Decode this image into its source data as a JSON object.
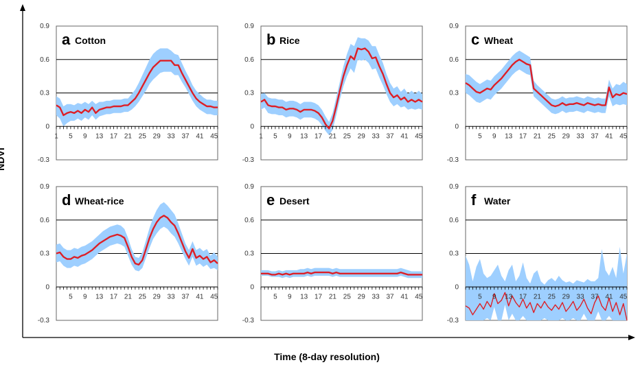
{
  "figure": {
    "xlabel": "Time (8-day resolution)",
    "ylabel": "NDVI"
  },
  "colors": {
    "mean_line": "#dd1f26",
    "band": "#9ecfff",
    "gridline": "#000000",
    "frame": "#666666"
  },
  "chart_data": [
    {
      "type": "line",
      "letter": "a",
      "name": "Cotton",
      "ylim": [
        -0.3,
        0.9
      ],
      "yticks": [
        "0.9",
        "0.6",
        "0.3",
        "0",
        "-0.3"
      ],
      "xticks": [
        "1",
        "5",
        "9",
        "13",
        "17",
        "21",
        "25",
        "29",
        "33",
        "37",
        "41",
        "45"
      ],
      "gridlines": [
        0.3,
        0.6
      ],
      "x": [
        1,
        2,
        3,
        4,
        5,
        6,
        7,
        8,
        9,
        10,
        11,
        12,
        13,
        14,
        15,
        16,
        17,
        18,
        19,
        20,
        21,
        22,
        23,
        24,
        25,
        26,
        27,
        28,
        29,
        30,
        31,
        32,
        33,
        34,
        35,
        36,
        37,
        38,
        39,
        40,
        41,
        42,
        43,
        44,
        45,
        46
      ],
      "mean": [
        0.19,
        0.17,
        0.1,
        0.12,
        0.13,
        0.12,
        0.14,
        0.12,
        0.15,
        0.13,
        0.17,
        0.12,
        0.15,
        0.16,
        0.17,
        0.17,
        0.18,
        0.18,
        0.18,
        0.19,
        0.19,
        0.22,
        0.25,
        0.3,
        0.36,
        0.42,
        0.48,
        0.53,
        0.56,
        0.59,
        0.59,
        0.59,
        0.59,
        0.55,
        0.55,
        0.48,
        0.42,
        0.36,
        0.3,
        0.25,
        0.22,
        0.2,
        0.18,
        0.18,
        0.17,
        0.17
      ],
      "upper": [
        0.27,
        0.25,
        0.18,
        0.2,
        0.2,
        0.19,
        0.21,
        0.2,
        0.22,
        0.2,
        0.23,
        0.2,
        0.22,
        0.22,
        0.23,
        0.23,
        0.24,
        0.24,
        0.24,
        0.25,
        0.25,
        0.29,
        0.33,
        0.39,
        0.46,
        0.53,
        0.6,
        0.65,
        0.68,
        0.7,
        0.7,
        0.7,
        0.68,
        0.65,
        0.64,
        0.57,
        0.5,
        0.44,
        0.37,
        0.32,
        0.29,
        0.26,
        0.24,
        0.24,
        0.23,
        0.23
      ],
      "lower": [
        0.1,
        0.07,
        0.0,
        0.03,
        0.05,
        0.05,
        0.07,
        0.05,
        0.08,
        0.06,
        0.1,
        0.06,
        0.09,
        0.1,
        0.11,
        0.11,
        0.12,
        0.12,
        0.12,
        0.13,
        0.13,
        0.15,
        0.18,
        0.22,
        0.27,
        0.32,
        0.38,
        0.42,
        0.45,
        0.48,
        0.49,
        0.49,
        0.49,
        0.46,
        0.46,
        0.4,
        0.35,
        0.29,
        0.23,
        0.18,
        0.15,
        0.13,
        0.11,
        0.11,
        0.1,
        0.1
      ]
    },
    {
      "type": "line",
      "letter": "b",
      "name": "Rice",
      "ylim": [
        -0.3,
        0.9
      ],
      "yticks": [
        "0.9",
        "0.6",
        "0.3",
        "0",
        "-0.3"
      ],
      "xticks": [
        "1",
        "5",
        "9",
        "13",
        "17",
        "21",
        "25",
        "29",
        "33",
        "37",
        "41",
        "45"
      ],
      "gridlines": [
        0.3,
        0.6
      ],
      "x": [
        1,
        2,
        3,
        4,
        5,
        6,
        7,
        8,
        9,
        10,
        11,
        12,
        13,
        14,
        15,
        16,
        17,
        18,
        19,
        20,
        21,
        22,
        23,
        24,
        25,
        26,
        27,
        28,
        29,
        30,
        31,
        32,
        33,
        34,
        35,
        36,
        37,
        38,
        39,
        40,
        41,
        42,
        43,
        44,
        45,
        46
      ],
      "mean": [
        0.22,
        0.24,
        0.19,
        0.18,
        0.18,
        0.17,
        0.17,
        0.15,
        0.16,
        0.16,
        0.15,
        0.13,
        0.15,
        0.15,
        0.15,
        0.14,
        0.12,
        0.08,
        0.02,
        -0.02,
        0.05,
        0.18,
        0.32,
        0.45,
        0.55,
        0.63,
        0.6,
        0.7,
        0.69,
        0.7,
        0.67,
        0.61,
        0.62,
        0.54,
        0.47,
        0.38,
        0.3,
        0.26,
        0.28,
        0.24,
        0.26,
        0.22,
        0.24,
        0.22,
        0.24,
        0.22
      ],
      "upper": [
        0.29,
        0.3,
        0.26,
        0.25,
        0.25,
        0.24,
        0.24,
        0.22,
        0.23,
        0.23,
        0.22,
        0.2,
        0.22,
        0.22,
        0.22,
        0.21,
        0.19,
        0.15,
        0.09,
        0.04,
        0.12,
        0.26,
        0.4,
        0.54,
        0.65,
        0.74,
        0.72,
        0.8,
        0.79,
        0.79,
        0.77,
        0.72,
        0.72,
        0.64,
        0.57,
        0.47,
        0.39,
        0.34,
        0.36,
        0.31,
        0.34,
        0.29,
        0.32,
        0.29,
        0.32,
        0.29
      ],
      "lower": [
        0.15,
        0.17,
        0.12,
        0.11,
        0.11,
        0.1,
        0.1,
        0.08,
        0.09,
        0.09,
        0.08,
        0.06,
        0.08,
        0.08,
        0.08,
        0.07,
        0.05,
        0.01,
        -0.04,
        -0.08,
        -0.03,
        0.1,
        0.24,
        0.36,
        0.45,
        0.52,
        0.48,
        0.6,
        0.59,
        0.6,
        0.57,
        0.51,
        0.52,
        0.44,
        0.37,
        0.29,
        0.22,
        0.18,
        0.2,
        0.17,
        0.18,
        0.15,
        0.16,
        0.15,
        0.16,
        0.15
      ]
    },
    {
      "type": "line",
      "letter": "c",
      "name": "Wheat",
      "ylim": [
        -0.3,
        0.9
      ],
      "yticks": [
        "0.9",
        "0.6",
        "0.3",
        "0",
        "-0.3"
      ],
      "xticks": [
        "5",
        "9",
        "13",
        "17",
        "21",
        "25",
        "29",
        "33",
        "37",
        "41",
        "45"
      ],
      "gridlines": [
        0.3,
        0.6
      ],
      "x": [
        1,
        2,
        3,
        4,
        5,
        6,
        7,
        8,
        9,
        10,
        11,
        12,
        13,
        14,
        15,
        16,
        17,
        18,
        19,
        20,
        21,
        22,
        23,
        24,
        25,
        26,
        27,
        28,
        29,
        30,
        31,
        32,
        33,
        34,
        35,
        36,
        37,
        38,
        39,
        40,
        41,
        42,
        43,
        44,
        45,
        46
      ],
      "mean": [
        0.39,
        0.37,
        0.34,
        0.31,
        0.3,
        0.32,
        0.34,
        0.33,
        0.37,
        0.4,
        0.43,
        0.47,
        0.51,
        0.55,
        0.58,
        0.6,
        0.58,
        0.56,
        0.55,
        0.34,
        0.31,
        0.28,
        0.25,
        0.22,
        0.19,
        0.18,
        0.19,
        0.21,
        0.19,
        0.2,
        0.2,
        0.21,
        0.2,
        0.19,
        0.21,
        0.2,
        0.19,
        0.2,
        0.19,
        0.19,
        0.35,
        0.26,
        0.29,
        0.28,
        0.3,
        0.29
      ],
      "upper": [
        0.47,
        0.46,
        0.43,
        0.4,
        0.38,
        0.4,
        0.42,
        0.41,
        0.45,
        0.48,
        0.51,
        0.55,
        0.59,
        0.63,
        0.66,
        0.68,
        0.66,
        0.64,
        0.62,
        0.41,
        0.37,
        0.34,
        0.31,
        0.28,
        0.25,
        0.24,
        0.25,
        0.27,
        0.25,
        0.26,
        0.26,
        0.27,
        0.26,
        0.25,
        0.27,
        0.26,
        0.25,
        0.26,
        0.25,
        0.25,
        0.42,
        0.34,
        0.38,
        0.37,
        0.4,
        0.38
      ],
      "lower": [
        0.3,
        0.28,
        0.25,
        0.22,
        0.21,
        0.23,
        0.25,
        0.24,
        0.28,
        0.31,
        0.34,
        0.38,
        0.42,
        0.46,
        0.49,
        0.51,
        0.49,
        0.47,
        0.46,
        0.27,
        0.24,
        0.21,
        0.18,
        0.15,
        0.12,
        0.11,
        0.12,
        0.14,
        0.12,
        0.13,
        0.13,
        0.14,
        0.13,
        0.12,
        0.14,
        0.13,
        0.12,
        0.13,
        0.12,
        0.12,
        0.27,
        0.18,
        0.2,
        0.19,
        0.2,
        0.19
      ]
    },
    {
      "type": "line",
      "letter": "d",
      "name": "Wheat-rice",
      "ylim": [
        -0.3,
        0.9
      ],
      "yticks": [
        "0.9",
        "0.6",
        "0.3",
        "0",
        "-0.3"
      ],
      "xticks": [
        "5",
        "9",
        "13",
        "17",
        "21",
        "25",
        "29",
        "33",
        "37",
        "41",
        "45"
      ],
      "gridlines": [
        0.3,
        0.6
      ],
      "x": [
        1,
        2,
        3,
        4,
        5,
        6,
        7,
        8,
        9,
        10,
        11,
        12,
        13,
        14,
        15,
        16,
        17,
        18,
        19,
        20,
        21,
        22,
        23,
        24,
        25,
        26,
        27,
        28,
        29,
        30,
        31,
        32,
        33,
        34,
        35,
        36,
        37,
        38,
        39,
        40,
        41,
        42,
        43,
        44,
        45,
        46
      ],
      "mean": [
        0.3,
        0.31,
        0.27,
        0.25,
        0.25,
        0.27,
        0.26,
        0.28,
        0.29,
        0.31,
        0.33,
        0.36,
        0.39,
        0.41,
        0.43,
        0.45,
        0.46,
        0.47,
        0.46,
        0.44,
        0.36,
        0.27,
        0.21,
        0.2,
        0.24,
        0.34,
        0.44,
        0.52,
        0.58,
        0.62,
        0.64,
        0.62,
        0.58,
        0.55,
        0.48,
        0.4,
        0.32,
        0.26,
        0.34,
        0.26,
        0.28,
        0.25,
        0.27,
        0.22,
        0.24,
        0.21
      ],
      "upper": [
        0.38,
        0.39,
        0.35,
        0.33,
        0.33,
        0.35,
        0.34,
        0.36,
        0.37,
        0.39,
        0.41,
        0.44,
        0.47,
        0.5,
        0.52,
        0.54,
        0.55,
        0.56,
        0.55,
        0.52,
        0.44,
        0.34,
        0.27,
        0.26,
        0.31,
        0.42,
        0.53,
        0.62,
        0.69,
        0.74,
        0.76,
        0.73,
        0.69,
        0.65,
        0.57,
        0.48,
        0.39,
        0.33,
        0.41,
        0.33,
        0.35,
        0.32,
        0.34,
        0.28,
        0.31,
        0.27
      ],
      "lower": [
        0.22,
        0.23,
        0.19,
        0.17,
        0.17,
        0.19,
        0.18,
        0.2,
        0.21,
        0.23,
        0.25,
        0.28,
        0.31,
        0.33,
        0.35,
        0.37,
        0.38,
        0.39,
        0.38,
        0.36,
        0.28,
        0.2,
        0.15,
        0.14,
        0.17,
        0.26,
        0.35,
        0.43,
        0.48,
        0.52,
        0.54,
        0.52,
        0.48,
        0.45,
        0.39,
        0.32,
        0.25,
        0.19,
        0.27,
        0.19,
        0.21,
        0.18,
        0.2,
        0.16,
        0.17,
        0.15
      ]
    },
    {
      "type": "line",
      "letter": "e",
      "name": "Desert",
      "ylim": [
        -0.3,
        0.9
      ],
      "yticks": [
        "0.9",
        "0.6",
        "0.3",
        "0",
        "-0.3"
      ],
      "xticks": [
        "5",
        "9",
        "13",
        "17",
        "21",
        "25",
        "29",
        "33",
        "37",
        "41",
        "45"
      ],
      "gridlines": [
        0.3,
        0.6
      ],
      "x": [
        1,
        2,
        3,
        4,
        5,
        6,
        7,
        8,
        9,
        10,
        11,
        12,
        13,
        14,
        15,
        16,
        17,
        18,
        19,
        20,
        21,
        22,
        23,
        24,
        25,
        26,
        27,
        28,
        29,
        30,
        31,
        32,
        33,
        34,
        35,
        36,
        37,
        38,
        39,
        40,
        41,
        42,
        43,
        44,
        45,
        46
      ],
      "mean": [
        0.12,
        0.12,
        0.12,
        0.11,
        0.11,
        0.12,
        0.11,
        0.12,
        0.11,
        0.12,
        0.12,
        0.12,
        0.12,
        0.13,
        0.12,
        0.13,
        0.13,
        0.13,
        0.13,
        0.13,
        0.12,
        0.13,
        0.12,
        0.12,
        0.12,
        0.12,
        0.12,
        0.12,
        0.12,
        0.12,
        0.12,
        0.12,
        0.12,
        0.12,
        0.12,
        0.12,
        0.12,
        0.12,
        0.12,
        0.13,
        0.12,
        0.11,
        0.11,
        0.11,
        0.11,
        0.11
      ],
      "upper": [
        0.15,
        0.15,
        0.15,
        0.14,
        0.14,
        0.15,
        0.14,
        0.15,
        0.15,
        0.15,
        0.15,
        0.16,
        0.16,
        0.17,
        0.16,
        0.17,
        0.17,
        0.17,
        0.17,
        0.17,
        0.16,
        0.17,
        0.16,
        0.16,
        0.16,
        0.16,
        0.16,
        0.16,
        0.16,
        0.16,
        0.16,
        0.16,
        0.16,
        0.16,
        0.16,
        0.16,
        0.16,
        0.16,
        0.16,
        0.17,
        0.16,
        0.15,
        0.14,
        0.14,
        0.14,
        0.14
      ],
      "lower": [
        0.1,
        0.1,
        0.1,
        0.09,
        0.09,
        0.09,
        0.08,
        0.09,
        0.08,
        0.09,
        0.09,
        0.09,
        0.09,
        0.1,
        0.09,
        0.1,
        0.1,
        0.1,
        0.1,
        0.1,
        0.09,
        0.1,
        0.09,
        0.09,
        0.09,
        0.09,
        0.09,
        0.09,
        0.09,
        0.09,
        0.09,
        0.09,
        0.09,
        0.09,
        0.09,
        0.09,
        0.09,
        0.09,
        0.09,
        0.1,
        0.09,
        0.08,
        0.08,
        0.08,
        0.08,
        0.08
      ]
    },
    {
      "type": "line",
      "letter": "f",
      "name": "Water",
      "ylim": [
        -0.3,
        0.9
      ],
      "yticks": [
        "0.9",
        "0.6",
        "0.3",
        "0",
        "-0.3"
      ],
      "xticks": [
        "5",
        "9",
        "13",
        "17",
        "21",
        "25",
        "29",
        "33",
        "37",
        "41",
        "45"
      ],
      "gridlines": [
        0.3,
        0.6
      ],
      "x": [
        1,
        2,
        3,
        4,
        5,
        6,
        7,
        8,
        9,
        10,
        11,
        12,
        13,
        14,
        15,
        16,
        17,
        18,
        19,
        20,
        21,
        22,
        23,
        24,
        25,
        26,
        27,
        28,
        29,
        30,
        31,
        32,
        33,
        34,
        35,
        36,
        37,
        38,
        39,
        40,
        41,
        42,
        43,
        44,
        45,
        46
      ],
      "mean": [
        -0.17,
        -0.19,
        -0.25,
        -0.2,
        -0.15,
        -0.2,
        -0.13,
        -0.18,
        -0.06,
        -0.15,
        -0.12,
        -0.05,
        -0.17,
        -0.08,
        -0.14,
        -0.18,
        -0.11,
        -0.19,
        -0.14,
        -0.23,
        -0.15,
        -0.19,
        -0.13,
        -0.18,
        -0.21,
        -0.16,
        -0.2,
        -0.14,
        -0.22,
        -0.18,
        -0.13,
        -0.21,
        -0.17,
        -0.11,
        -0.19,
        -0.24,
        -0.14,
        -0.08,
        -0.17,
        -0.21,
        -0.1,
        -0.22,
        -0.14,
        -0.25,
        -0.15,
        -0.3
      ],
      "upper": [
        0.28,
        0.2,
        0.05,
        0.18,
        0.25,
        0.12,
        0.08,
        0.1,
        0.15,
        0.2,
        0.1,
        0.05,
        0.15,
        0.2,
        0.05,
        0.1,
        0.22,
        0.08,
        0.03,
        0.12,
        0.15,
        0.05,
        0.02,
        0.06,
        0.08,
        0.05,
        0.1,
        0.06,
        0.04,
        0.05,
        0.03,
        0.06,
        0.05,
        0.04,
        0.07,
        0.05,
        0.05,
        0.08,
        0.34,
        0.15,
        0.1,
        0.18,
        0.08,
        0.36,
        0.12,
        0.3
      ],
      "lower": [
        -0.32,
        -0.32,
        -0.32,
        -0.32,
        -0.3,
        -0.32,
        -0.28,
        -0.32,
        -0.18,
        -0.32,
        -0.3,
        -0.16,
        -0.32,
        -0.24,
        -0.32,
        -0.32,
        -0.26,
        -0.32,
        -0.3,
        -0.32,
        -0.3,
        -0.32,
        -0.28,
        -0.32,
        -0.32,
        -0.3,
        -0.32,
        -0.28,
        -0.32,
        -0.32,
        -0.28,
        -0.32,
        -0.32,
        -0.24,
        -0.32,
        -0.32,
        -0.3,
        -0.22,
        -0.32,
        -0.32,
        -0.26,
        -0.32,
        -0.3,
        -0.32,
        -0.32,
        -0.32
      ]
    }
  ]
}
